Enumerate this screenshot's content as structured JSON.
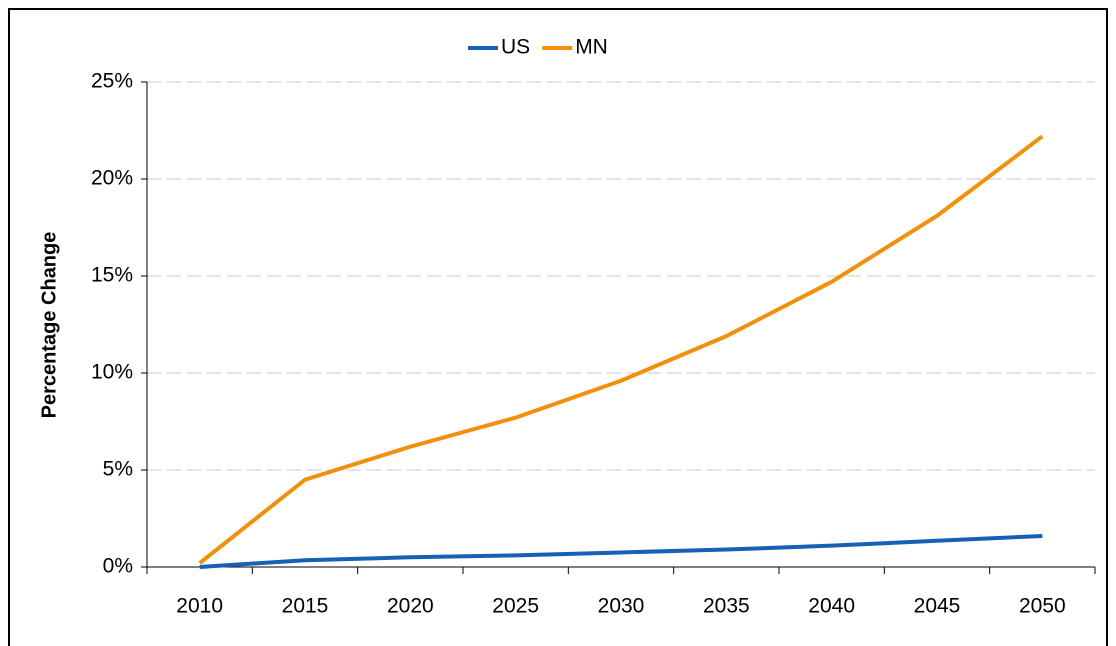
{
  "chart_data": {
    "type": "line",
    "y_label": "Percentage Change",
    "categories": [
      "2010",
      "2015",
      "2020",
      "2025",
      "2030",
      "2035",
      "2040",
      "2045",
      "2050"
    ],
    "series": [
      {
        "name": "US",
        "color": "#1660b8",
        "values": [
          0,
          0.35,
          0.5,
          0.6,
          0.75,
          0.9,
          1.1,
          1.35,
          1.6
        ]
      },
      {
        "name": "MN",
        "color": "#f0900c",
        "values": [
          0.2,
          4.5,
          6.2,
          7.7,
          9.6,
          11.9,
          14.7,
          18.1,
          22.2
        ]
      }
    ],
    "ylim": [
      0,
      25
    ],
    "yticks": [
      {
        "value": 0,
        "label": "0%"
      },
      {
        "value": 5,
        "label": "5%"
      },
      {
        "value": 10,
        "label": "10%"
      },
      {
        "value": 15,
        "label": "15%"
      },
      {
        "value": 20,
        "label": "20%"
      },
      {
        "value": 25,
        "label": "25%"
      }
    ],
    "grid": true,
    "legend": "top"
  }
}
